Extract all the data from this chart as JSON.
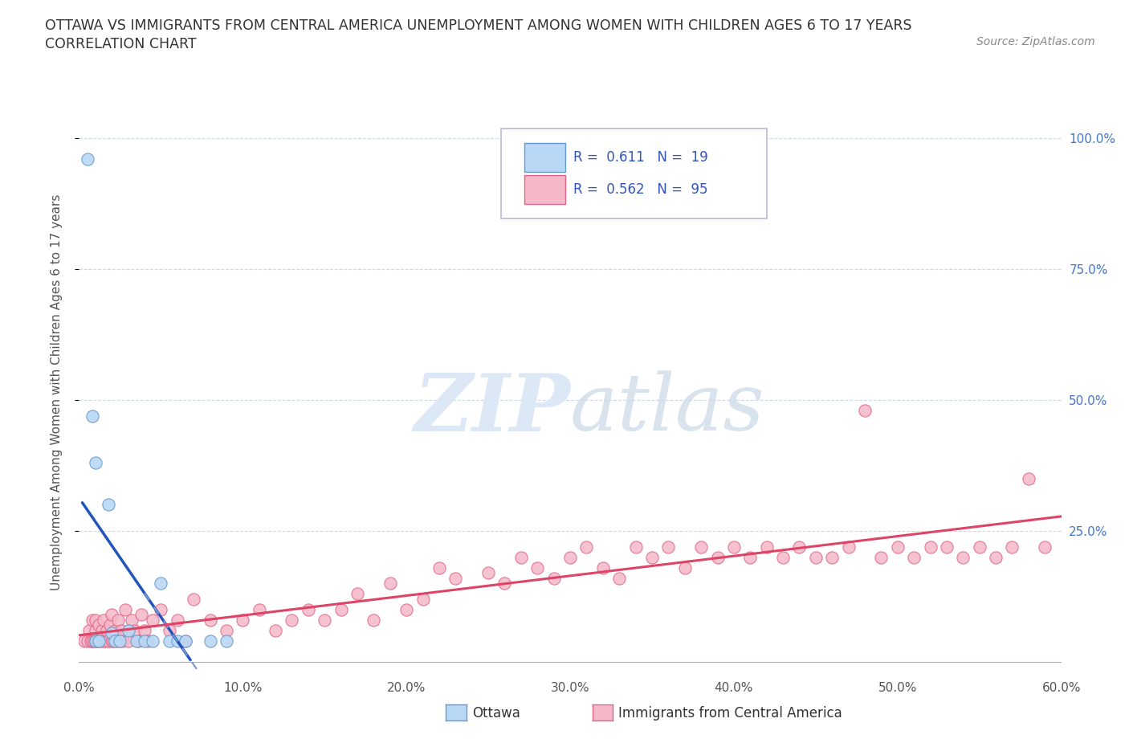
{
  "title_line1": "OTTAWA VS IMMIGRANTS FROM CENTRAL AMERICA UNEMPLOYMENT AMONG WOMEN WITH CHILDREN AGES 6 TO 17 YEARS",
  "title_line2": "CORRELATION CHART",
  "source_text": "Source: ZipAtlas.com",
  "ylabel": "Unemployment Among Women with Children Ages 6 to 17 years",
  "xlim": [
    0.0,
    0.6
  ],
  "ylim": [
    -0.02,
    1.05
  ],
  "xtick_labels": [
    "0.0%",
    "10.0%",
    "20.0%",
    "30.0%",
    "40.0%",
    "50.0%",
    "60.0%"
  ],
  "xtick_values": [
    0.0,
    0.1,
    0.2,
    0.3,
    0.4,
    0.5,
    0.6
  ],
  "ytick_labels_right": [
    "100.0%",
    "75.0%",
    "50.0%",
    "25.0%"
  ],
  "ytick_values_right": [
    1.0,
    0.75,
    0.5,
    0.25
  ],
  "ottawa_color": "#b8d8f5",
  "ottawa_edge_color": "#6699cc",
  "ottawa_line_color": "#2255bb",
  "ottawa_line_dash_color": "#7799cc",
  "immigrants_color": "#f5b8c8",
  "immigrants_edge_color": "#dd6688",
  "immigrants_line_color": "#dd4466",
  "ottawa_R": 0.611,
  "ottawa_N": 19,
  "immigrants_R": 0.562,
  "immigrants_N": 95,
  "legend_text_color": "#3355bb",
  "legend_number_color": "#3355bb",
  "watermark_color": "#dce8f5",
  "background_color": "#ffffff",
  "grid_color": "#d0d8e8",
  "ottawa_x": [
    0.005,
    0.008,
    0.01,
    0.01,
    0.012,
    0.018,
    0.02,
    0.022,
    0.025,
    0.03,
    0.035,
    0.04,
    0.045,
    0.05,
    0.055,
    0.06,
    0.065,
    0.08,
    0.09
  ],
  "ottawa_y": [
    0.96,
    0.47,
    0.38,
    0.04,
    0.04,
    0.3,
    0.055,
    0.04,
    0.04,
    0.06,
    0.04,
    0.04,
    0.04,
    0.15,
    0.04,
    0.04,
    0.04,
    0.04,
    0.04
  ],
  "immigrants_x": [
    0.003,
    0.005,
    0.006,
    0.007,
    0.008,
    0.008,
    0.009,
    0.01,
    0.01,
    0.01,
    0.011,
    0.012,
    0.012,
    0.013,
    0.014,
    0.015,
    0.015,
    0.016,
    0.017,
    0.018,
    0.019,
    0.02,
    0.02,
    0.021,
    0.022,
    0.023,
    0.024,
    0.025,
    0.026,
    0.027,
    0.028,
    0.03,
    0.032,
    0.034,
    0.036,
    0.038,
    0.04,
    0.042,
    0.045,
    0.05,
    0.055,
    0.06,
    0.065,
    0.07,
    0.08,
    0.09,
    0.1,
    0.11,
    0.12,
    0.13,
    0.14,
    0.15,
    0.16,
    0.17,
    0.18,
    0.19,
    0.2,
    0.21,
    0.22,
    0.23,
    0.25,
    0.26,
    0.27,
    0.28,
    0.29,
    0.3,
    0.31,
    0.32,
    0.33,
    0.34,
    0.35,
    0.36,
    0.37,
    0.38,
    0.39,
    0.4,
    0.41,
    0.42,
    0.43,
    0.44,
    0.45,
    0.46,
    0.47,
    0.48,
    0.49,
    0.5,
    0.51,
    0.52,
    0.53,
    0.54,
    0.55,
    0.56,
    0.57,
    0.58,
    0.59
  ],
  "immigrants_y": [
    0.04,
    0.04,
    0.06,
    0.04,
    0.04,
    0.08,
    0.04,
    0.04,
    0.06,
    0.08,
    0.04,
    0.04,
    0.07,
    0.04,
    0.06,
    0.04,
    0.08,
    0.04,
    0.06,
    0.04,
    0.07,
    0.04,
    0.09,
    0.04,
    0.06,
    0.04,
    0.08,
    0.04,
    0.06,
    0.04,
    0.1,
    0.04,
    0.08,
    0.06,
    0.04,
    0.09,
    0.06,
    0.04,
    0.08,
    0.1,
    0.06,
    0.08,
    0.04,
    0.12,
    0.08,
    0.06,
    0.08,
    0.1,
    0.06,
    0.08,
    0.1,
    0.08,
    0.1,
    0.13,
    0.08,
    0.15,
    0.1,
    0.12,
    0.18,
    0.16,
    0.17,
    0.15,
    0.2,
    0.18,
    0.16,
    0.2,
    0.22,
    0.18,
    0.16,
    0.22,
    0.2,
    0.22,
    0.18,
    0.22,
    0.2,
    0.22,
    0.2,
    0.22,
    0.2,
    0.22,
    0.2,
    0.2,
    0.22,
    0.48,
    0.2,
    0.22,
    0.2,
    0.22,
    0.22,
    0.2,
    0.22,
    0.2,
    0.22,
    0.35,
    0.22
  ]
}
